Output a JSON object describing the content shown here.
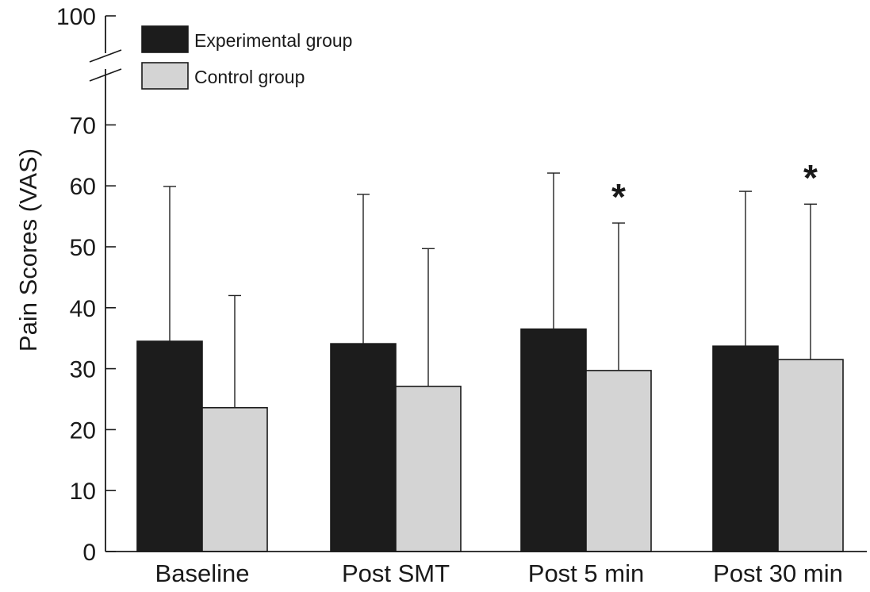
{
  "chart_data": {
    "type": "bar",
    "ylabel": "Pain Scores (VAS)",
    "xlabel": "",
    "ylim": [
      0,
      100
    ],
    "axis_break": [
      75,
      95
    ],
    "yticks": [
      0,
      10,
      20,
      30,
      40,
      50,
      60,
      70,
      100
    ],
    "ytick_labels": [
      "0",
      "10",
      "20",
      "30",
      "40",
      "50",
      "60",
      "70",
      "100"
    ],
    "categories": [
      "Baseline",
      "Post SMT",
      "Post 5 min",
      "Post 30 min"
    ],
    "series": [
      {
        "name": "Experimental group",
        "color": "#1c1c1c",
        "values": [
          34.5,
          34.1,
          36.5,
          33.7
        ],
        "error_upper": [
          59.9,
          58.6,
          62.1,
          59.1
        ]
      },
      {
        "name": "Control group",
        "color": "#d4d4d4",
        "values": [
          23.6,
          27.1,
          29.7,
          31.5
        ],
        "error_upper": [
          42.0,
          49.7,
          53.9,
          57.0
        ]
      }
    ],
    "annotations": [
      {
        "text": "*",
        "category": "Post 5 min",
        "series": "Control group"
      },
      {
        "text": "*",
        "category": "Post 30 min",
        "series": "Control group"
      }
    ],
    "legend_position": "top-left",
    "grid": false
  }
}
